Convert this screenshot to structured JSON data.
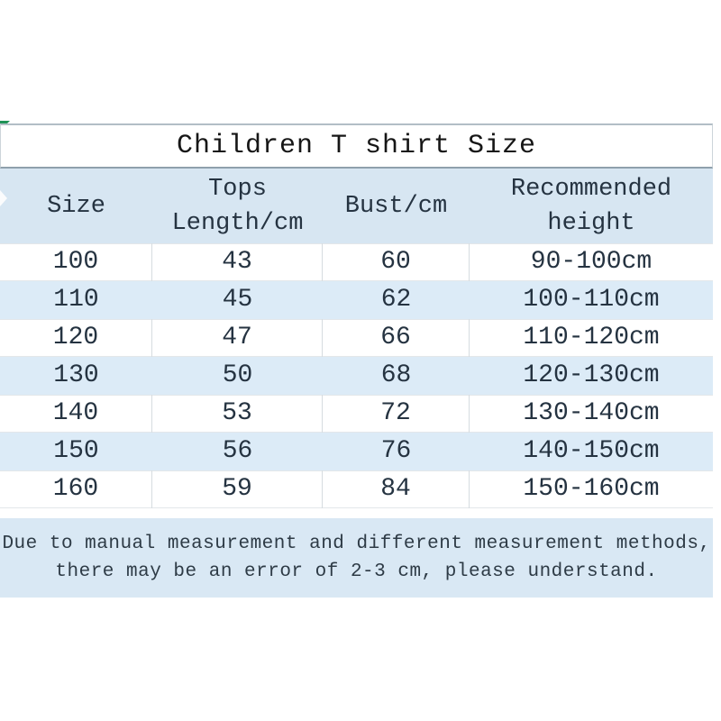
{
  "chart_data": {
    "type": "table",
    "title": "Children T shirt Size",
    "columns": [
      "Size",
      "Tops Length/cm",
      "Bust/cm",
      "Recommended height"
    ],
    "header": {
      "size": "Size",
      "tops_line1": "Tops",
      "tops_line2": "Length/cm",
      "bust": "Bust/cm",
      "rec_line1": "Recommended",
      "rec_line2": "height"
    },
    "rows": [
      [
        "100",
        "43",
        "60",
        "90-100cm"
      ],
      [
        "110",
        "45",
        "62",
        "100-110cm"
      ],
      [
        "120",
        "47",
        "66",
        "110-120cm"
      ],
      [
        "130",
        "50",
        "68",
        "120-130cm"
      ],
      [
        "140",
        "53",
        "72",
        "130-140cm"
      ],
      [
        "150",
        "56",
        "76",
        "140-150cm"
      ],
      [
        "160",
        "59",
        "84",
        "150-160cm"
      ]
    ],
    "note": {
      "line1": "Due to manual measurement and different measurement methods,",
      "line2": "there may be an error of 2-3 cm, please understand."
    },
    "layout_hints": {
      "row_striping": "white / light-blue alternating, starting white",
      "legend": "none",
      "grid": "vertical dividers on white rows only"
    },
    "colors": {
      "header_bg": "#d7e6f2",
      "row_alt_bg": "#dcebf7",
      "note_bg": "#d9e8f4",
      "title_border": "#8fa0ac",
      "text": "#253341",
      "corner_green": "#1f9356"
    }
  }
}
